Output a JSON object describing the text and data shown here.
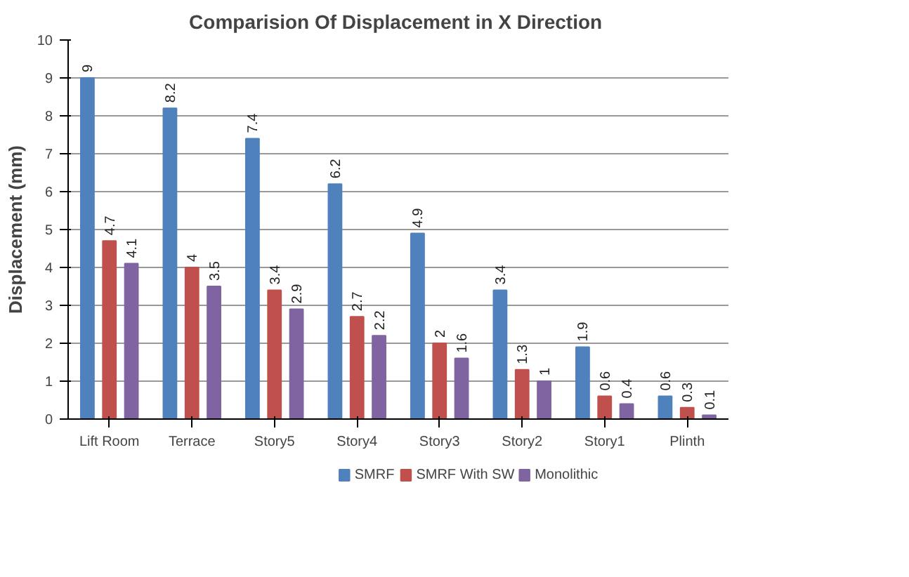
{
  "chart_data": {
    "type": "bar",
    "title": "Comparision  Of Displacement in X Direction",
    "ylabel": "Displacement (mm)",
    "categories": [
      "Lift Room",
      "Terrace",
      "Story5",
      "Story4",
      "Story3",
      "Story2",
      "Story1",
      "Plinth"
    ],
    "series": [
      {
        "name": "SMRF",
        "color": "#4f81bd",
        "values": [
          9,
          8.2,
          7.4,
          6.2,
          4.9,
          3.4,
          1.9,
          0.6
        ]
      },
      {
        "name": "SMRF With SW",
        "color": "#c0504d",
        "values": [
          4.7,
          4,
          3.4,
          2.7,
          2,
          1.3,
          0.6,
          0.3
        ]
      },
      {
        "name": "Monolithic",
        "color": "#8064a2",
        "values": [
          4.1,
          3.5,
          2.9,
          2.2,
          1.6,
          1,
          0.4,
          0.1
        ]
      }
    ],
    "ylim": [
      0,
      10
    ],
    "yticks": [
      0,
      1,
      2,
      3,
      4,
      5,
      6,
      7,
      8,
      9,
      10
    ],
    "grid": "y",
    "legend": "bottom",
    "data_labels": true
  }
}
